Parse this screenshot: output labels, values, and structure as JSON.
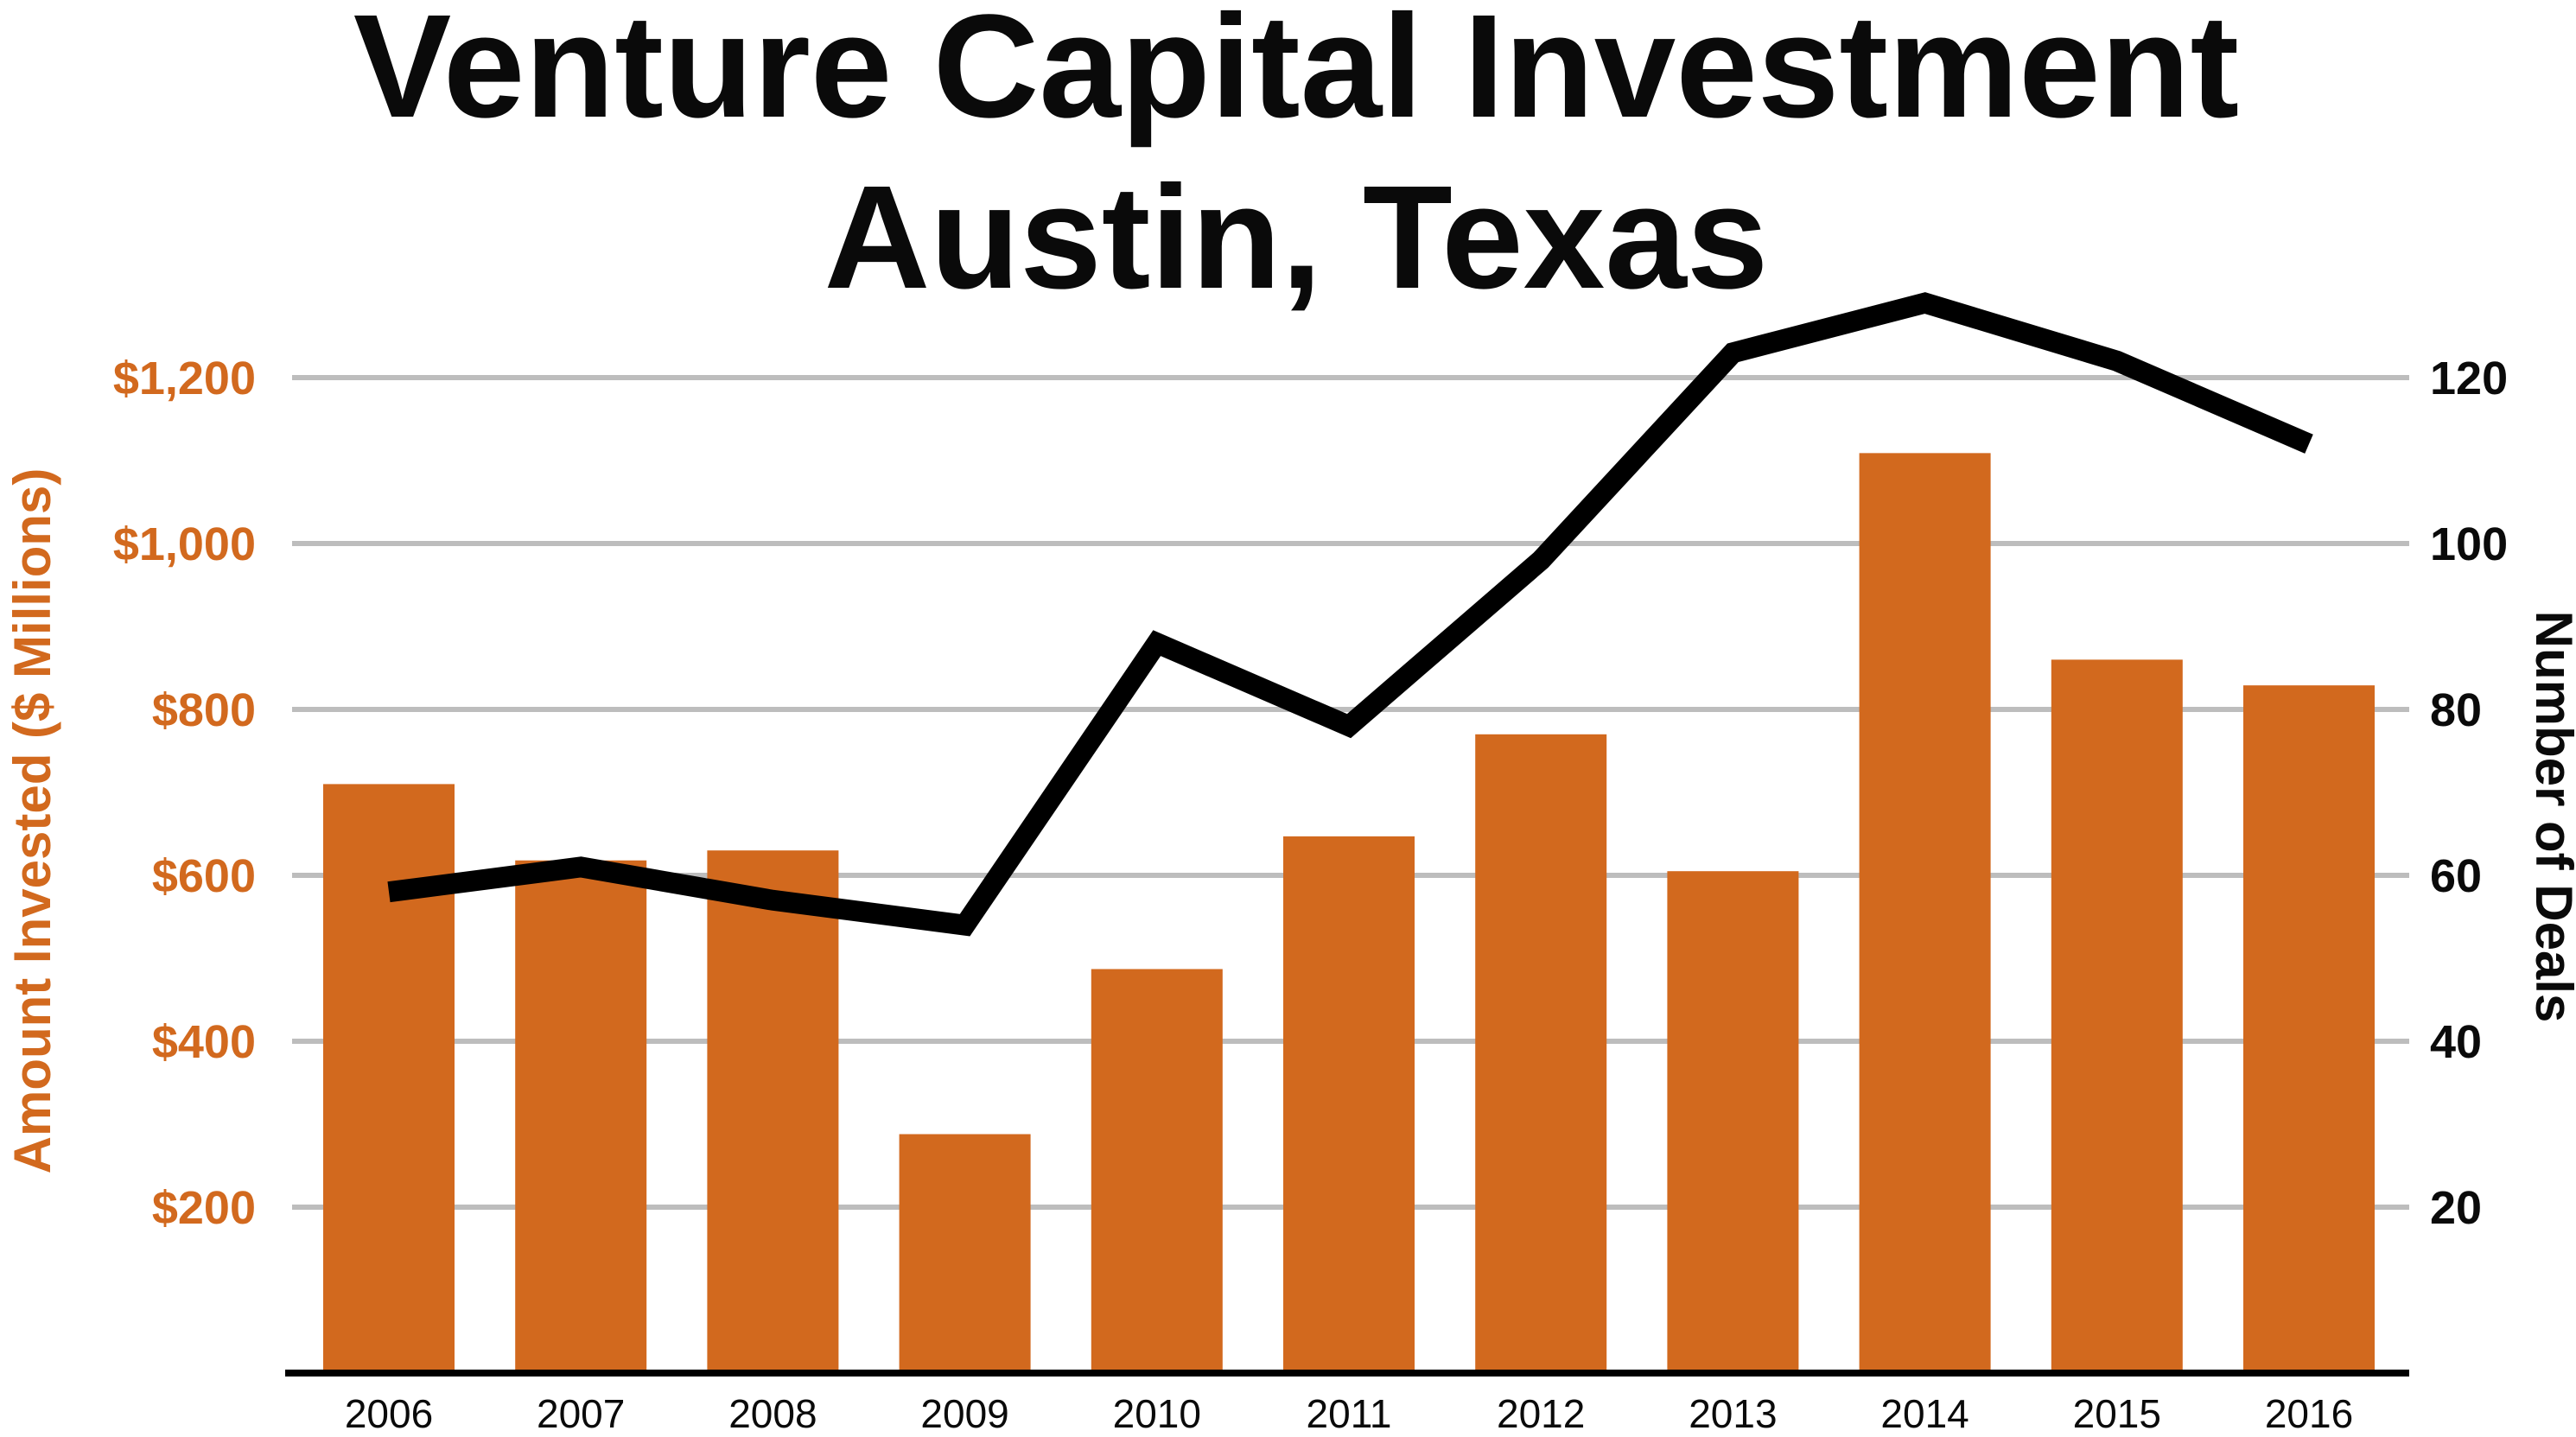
{
  "title": {
    "line1": "Venture Capital Investment",
    "line2": "Austin, Texas"
  },
  "left_axis": {
    "title": "Amount Invested ($ Millions)",
    "tick_labels": [
      "$1,200",
      "$1,000",
      "$800",
      "$600",
      "$400",
      "$200"
    ],
    "tick_values": [
      1200,
      1000,
      800,
      600,
      400,
      200
    ],
    "color": "#d2691e"
  },
  "right_axis": {
    "title": "Number of Deals",
    "tick_labels": [
      "120",
      "100",
      "80",
      "60",
      "40",
      "20"
    ],
    "tick_values": [
      120,
      100,
      80,
      60,
      40,
      20
    ],
    "color": "#0a0a0a"
  },
  "x_axis": {
    "labels": [
      "2006",
      "2007",
      "2008",
      "2009",
      "2010",
      "2011",
      "2012",
      "2013",
      "2014",
      "2015",
      "2016"
    ]
  },
  "colors": {
    "bar": "#d2691e",
    "line": "#000000",
    "gridline": "#bdbdbd",
    "baseline": "#000000",
    "background": "#ffffff"
  },
  "chart_data": {
    "type": "bar",
    "subtype": "combo-bar-line-dual-axis",
    "title": "Venture Capital Investment Austin, Texas",
    "categories": [
      2006,
      2007,
      2008,
      2009,
      2010,
      2011,
      2012,
      2013,
      2014,
      2015,
      2016
    ],
    "series": [
      {
        "name": "Amount Invested ($ Millions)",
        "chart": "bar",
        "axis": "left",
        "color": "#d2691e",
        "values": [
          710,
          618,
          630,
          288,
          487,
          647,
          770,
          605,
          1109,
          860,
          829
        ]
      },
      {
        "name": "Number of Deals",
        "chart": "line",
        "axis": "right",
        "color": "#000000",
        "values": [
          58,
          61,
          57,
          54,
          88,
          78,
          98,
          123,
          129,
          122,
          112
        ]
      }
    ],
    "left_ylabel": "Amount Invested ($ Millions)",
    "right_ylabel": "Number of Deals",
    "left_ylim": [
      0,
      1200
    ],
    "right_ylim": [
      0,
      120
    ],
    "grid": true,
    "legend": "none"
  }
}
